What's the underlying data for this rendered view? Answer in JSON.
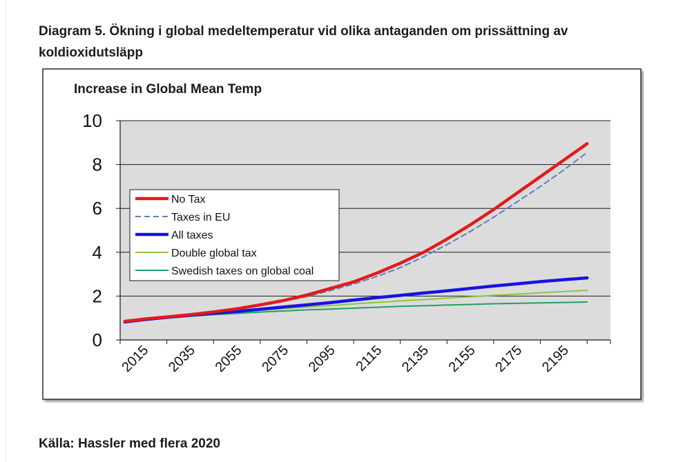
{
  "heading": "Diagram 5. Ökning i global medeltemperatur vid olika antaganden om prissättning av koldioxidutsläpp",
  "source": "Källa: Hassler med flera 2020",
  "chart_data": {
    "type": "line",
    "title": "Increase in Global Mean Temp",
    "xlabel": "",
    "ylabel": "",
    "ylim": [
      0,
      10
    ],
    "xlim": [
      2005,
      2215
    ],
    "y_ticks": [
      "0",
      "2",
      "4",
      "6",
      "8",
      "10"
    ],
    "y_tick_values": [
      0,
      2,
      4,
      6,
      8,
      10
    ],
    "x_ticks": [
      "2015",
      "2035",
      "2055",
      "2075",
      "2095",
      "2115",
      "2135",
      "2155",
      "2175",
      "2195"
    ],
    "x_tick_values": [
      2015,
      2035,
      2055,
      2075,
      2095,
      2115,
      2135,
      2155,
      2175,
      2195
    ],
    "grid": true,
    "legend_position": "left-middle",
    "series": [
      {
        "name": "No Tax",
        "color": "#e41a1a",
        "style": "solid-thick",
        "x": [
          2007,
          2015,
          2025,
          2035,
          2045,
          2055,
          2065,
          2075,
          2085,
          2095,
          2105,
          2115,
          2125,
          2135,
          2145,
          2155,
          2165,
          2175,
          2185,
          2195,
          2205
        ],
        "values": [
          0.85,
          0.95,
          1.05,
          1.15,
          1.28,
          1.42,
          1.6,
          1.8,
          2.05,
          2.35,
          2.65,
          3.05,
          3.5,
          4.0,
          4.6,
          5.25,
          5.95,
          6.7,
          7.45,
          8.2,
          8.95
        ]
      },
      {
        "name": "Taxes in EU",
        "color": "#5a7fc4",
        "style": "dashed",
        "x": [
          2007,
          2015,
          2025,
          2035,
          2045,
          2055,
          2065,
          2075,
          2085,
          2095,
          2105,
          2115,
          2125,
          2135,
          2145,
          2155,
          2165,
          2175,
          2185,
          2195,
          2205
        ],
        "values": [
          0.85,
          0.95,
          1.05,
          1.15,
          1.27,
          1.4,
          1.57,
          1.76,
          1.98,
          2.25,
          2.55,
          2.9,
          3.3,
          3.8,
          4.35,
          4.95,
          5.6,
          6.3,
          7.0,
          7.75,
          8.55
        ]
      },
      {
        "name": "All taxes",
        "color": "#1414e0",
        "style": "solid-thick",
        "x": [
          2007,
          2015,
          2025,
          2035,
          2045,
          2055,
          2065,
          2075,
          2085,
          2095,
          2105,
          2115,
          2125,
          2135,
          2145,
          2155,
          2165,
          2175,
          2185,
          2195,
          2205
        ],
        "values": [
          0.82,
          0.92,
          1.03,
          1.13,
          1.22,
          1.3,
          1.4,
          1.5,
          1.6,
          1.7,
          1.82,
          1.93,
          2.03,
          2.14,
          2.24,
          2.35,
          2.46,
          2.56,
          2.66,
          2.75,
          2.83
        ]
      },
      {
        "name": "Double global tax",
        "color": "#8cc63f",
        "style": "solid",
        "x": [
          2007,
          2015,
          2025,
          2035,
          2045,
          2055,
          2065,
          2075,
          2085,
          2095,
          2105,
          2115,
          2125,
          2135,
          2145,
          2155,
          2165,
          2175,
          2185,
          2195,
          2205
        ],
        "values": [
          0.82,
          0.92,
          1.03,
          1.12,
          1.2,
          1.28,
          1.35,
          1.43,
          1.5,
          1.57,
          1.64,
          1.71,
          1.78,
          1.84,
          1.91,
          1.97,
          2.03,
          2.09,
          2.15,
          2.21,
          2.26
        ]
      },
      {
        "name": "Swedish taxes on global coal",
        "color": "#1fa060",
        "style": "solid",
        "x": [
          2007,
          2015,
          2025,
          2035,
          2045,
          2055,
          2065,
          2075,
          2085,
          2095,
          2105,
          2115,
          2125,
          2135,
          2145,
          2155,
          2165,
          2175,
          2185,
          2195,
          2205
        ],
        "values": [
          0.82,
          0.9,
          1.0,
          1.08,
          1.15,
          1.21,
          1.27,
          1.32,
          1.37,
          1.41,
          1.45,
          1.49,
          1.53,
          1.56,
          1.59,
          1.62,
          1.65,
          1.67,
          1.69,
          1.71,
          1.73
        ]
      }
    ]
  }
}
